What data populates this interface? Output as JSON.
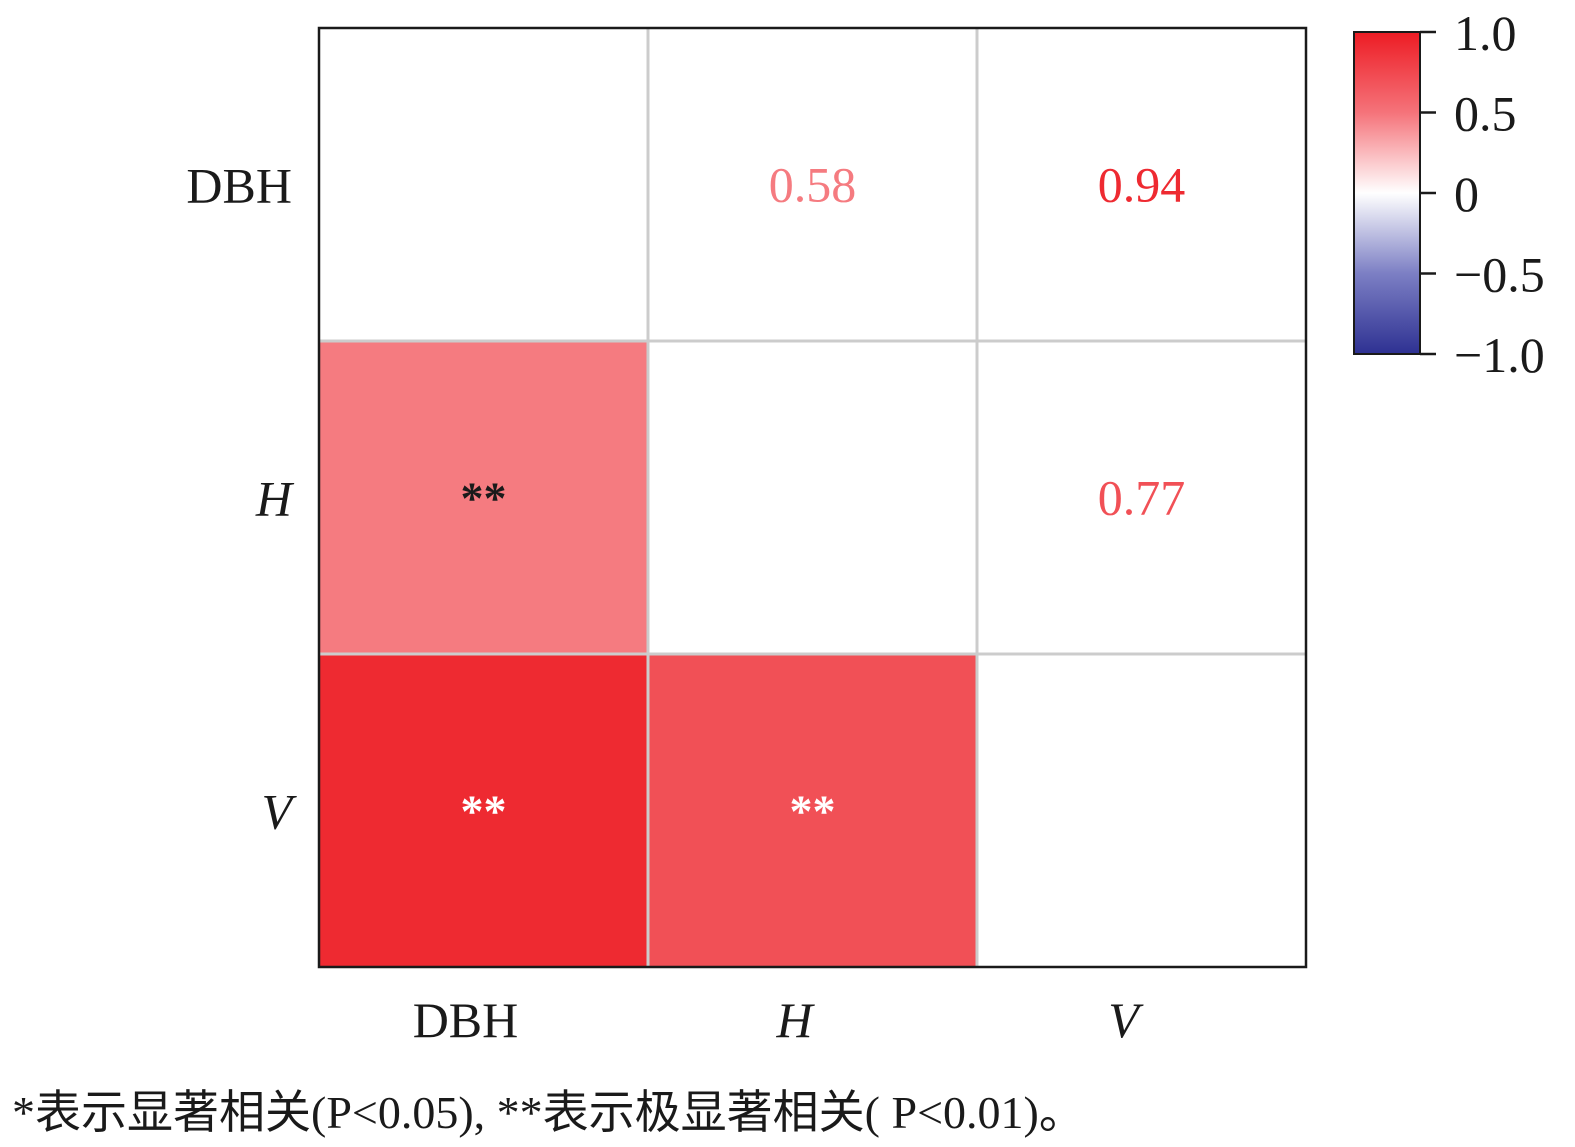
{
  "chart_data": {
    "type": "heatmap",
    "variables": [
      {
        "label": "DBH",
        "italic": false
      },
      {
        "label": "H",
        "italic": true
      },
      {
        "label": "V",
        "italic": true
      }
    ],
    "upper_cells": [
      {
        "row": 0,
        "col": 1,
        "text": "0.58",
        "value": 0.58
      },
      {
        "row": 0,
        "col": 2,
        "text": "0.94",
        "value": 0.94
      },
      {
        "row": 1,
        "col": 2,
        "text": "0.77",
        "value": 0.77
      }
    ],
    "lower_cells": [
      {
        "row": 1,
        "col": 0,
        "value": 0.58,
        "marker": "**"
      },
      {
        "row": 2,
        "col": 0,
        "value": 0.94,
        "marker": "**"
      },
      {
        "row": 2,
        "col": 1,
        "value": 0.77,
        "marker": "**"
      }
    ],
    "colorbar": {
      "range": [
        -1.0,
        1.0
      ],
      "ticks": [
        {
          "value": 1.0,
          "label": "1.0"
        },
        {
          "value": 0.5,
          "label": "0.5"
        },
        {
          "value": 0,
          "label": "0"
        },
        {
          "value": -0.5,
          "label": "−0.5"
        },
        {
          "value": -1.0,
          "label": "−1.0"
        }
      ],
      "colors": {
        "high": "#ED1C24",
        "mid": "#FFFFFF",
        "low": "#2E3192"
      }
    },
    "grid": true,
    "legend_position": "top-right"
  },
  "footnote": "*表示显著相关(P<0.05), **表示极显著相关( P<0.01)。"
}
